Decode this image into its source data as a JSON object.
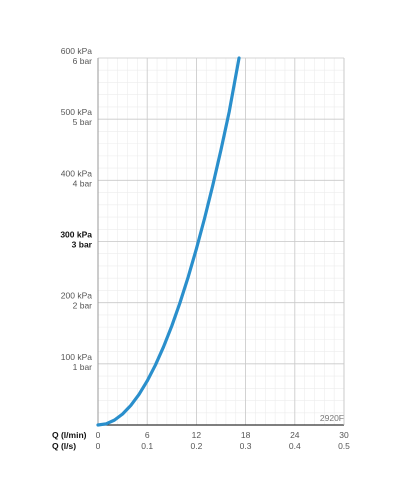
{
  "chart_data": {
    "type": "line",
    "title": "",
    "code_label": "2920F",
    "x_axis_primary": {
      "name": "Q (l/min)",
      "ticks": [
        "0",
        "6",
        "12",
        "18",
        "24",
        "30"
      ],
      "range": [
        0,
        30
      ]
    },
    "x_axis_secondary": {
      "name": "Q (l/s)",
      "ticks": [
        "0",
        "0.1",
        "0.2",
        "0.3",
        "0.4",
        "0.5"
      ],
      "range": [
        0,
        0.5
      ]
    },
    "y_axis": {
      "range": [
        0,
        600
      ],
      "ticks": [
        {
          "value": 100,
          "kpa": "100 kPa",
          "bar": "1 bar",
          "bold": false
        },
        {
          "value": 200,
          "kpa": "200 kPa",
          "bar": "2 bar",
          "bold": false
        },
        {
          "value": 300,
          "kpa": "300 kPa",
          "bar": "3 bar",
          "bold": true
        },
        {
          "value": 400,
          "kpa": "400 kPa",
          "bar": "4 bar",
          "bold": false
        },
        {
          "value": 500,
          "kpa": "500 kPa",
          "bar": "5 bar",
          "bold": false
        },
        {
          "value": 600,
          "kpa": "600 kPa",
          "bar": "6 bar",
          "bold": false
        }
      ]
    },
    "grid": true,
    "series": [
      {
        "color": "#2a8fcc",
        "x": [
          0,
          1,
          2,
          3,
          4,
          5,
          6,
          7,
          8,
          9,
          10,
          11,
          12,
          13,
          14,
          15,
          16,
          17.2
        ],
        "y": [
          0,
          2,
          8,
          18,
          32,
          50,
          72,
          98,
          128,
          162,
          200,
          242,
          288,
          338,
          392,
          450,
          512,
          600
        ]
      }
    ]
  }
}
